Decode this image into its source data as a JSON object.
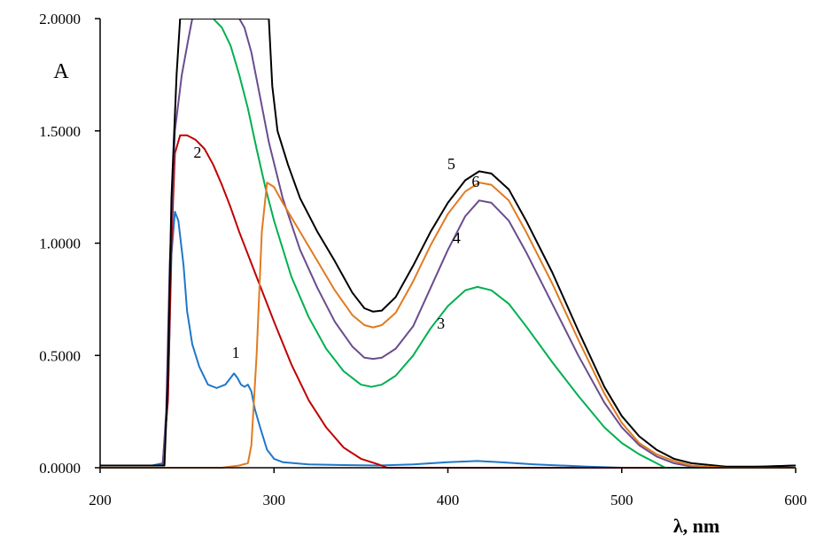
{
  "chart_data": {
    "type": "line",
    "title": "",
    "xlabel": "λ, nm",
    "ylabel": "A",
    "xlim": [
      200,
      600
    ],
    "ylim": [
      0,
      2
    ],
    "x_ticks": [
      "200",
      "300",
      "400",
      "500",
      "600"
    ],
    "y_ticks": [
      "0.0000",
      "0.5000",
      "1.0000",
      "1.5000",
      "2.0000"
    ],
    "series": [
      {
        "name": "1",
        "color": "#1f77c8",
        "label_at": [
          278,
          0.49
        ],
        "points": [
          [
            200,
            0.01
          ],
          [
            230,
            0.01
          ],
          [
            236,
            0.02
          ],
          [
            239,
            0.3
          ],
          [
            241,
            0.95
          ],
          [
            243,
            1.14
          ],
          [
            245,
            1.1
          ],
          [
            248,
            0.9
          ],
          [
            250,
            0.7
          ],
          [
            253,
            0.55
          ],
          [
            257,
            0.45
          ],
          [
            262,
            0.37
          ],
          [
            267,
            0.355
          ],
          [
            272,
            0.37
          ],
          [
            275,
            0.4
          ],
          [
            277,
            0.42
          ],
          [
            279,
            0.4
          ],
          [
            281,
            0.37
          ],
          [
            283,
            0.36
          ],
          [
            285,
            0.37
          ],
          [
            287,
            0.34
          ],
          [
            289,
            0.26
          ],
          [
            292,
            0.18
          ],
          [
            296,
            0.08
          ],
          [
            300,
            0.04
          ],
          [
            305,
            0.025
          ],
          [
            320,
            0.015
          ],
          [
            340,
            0.012
          ],
          [
            360,
            0.01
          ],
          [
            380,
            0.015
          ],
          [
            400,
            0.025
          ],
          [
            417,
            0.03
          ],
          [
            430,
            0.025
          ],
          [
            450,
            0.015
          ],
          [
            480,
            0.005
          ],
          [
            500,
            0.0
          ],
          [
            550,
            0.0
          ],
          [
            600,
            0.0
          ]
        ]
      },
      {
        "name": "2",
        "color": "#c00000",
        "label_at": [
          256,
          1.38
        ],
        "points": [
          [
            200,
            0.01
          ],
          [
            236,
            0.01
          ],
          [
            239,
            0.3
          ],
          [
            241,
            1.0
          ],
          [
            243,
            1.4
          ],
          [
            246,
            1.48
          ],
          [
            250,
            1.48
          ],
          [
            255,
            1.46
          ],
          [
            260,
            1.42
          ],
          [
            265,
            1.35
          ],
          [
            270,
            1.26
          ],
          [
            275,
            1.16
          ],
          [
            280,
            1.05
          ],
          [
            290,
            0.85
          ],
          [
            300,
            0.65
          ],
          [
            310,
            0.46
          ],
          [
            320,
            0.3
          ],
          [
            330,
            0.18
          ],
          [
            340,
            0.09
          ],
          [
            350,
            0.04
          ],
          [
            360,
            0.015
          ],
          [
            365,
            0.0
          ],
          [
            400,
            0.0
          ],
          [
            600,
            0.0
          ]
        ]
      },
      {
        "name": "3",
        "color": "#00b050",
        "label_at": [
          396,
          0.62
        ],
        "points": [
          [
            265,
            2.0
          ],
          [
            270,
            1.96
          ],
          [
            275,
            1.88
          ],
          [
            280,
            1.75
          ],
          [
            285,
            1.6
          ],
          [
            290,
            1.42
          ],
          [
            295,
            1.25
          ],
          [
            300,
            1.1
          ],
          [
            310,
            0.85
          ],
          [
            320,
            0.67
          ],
          [
            330,
            0.53
          ],
          [
            340,
            0.43
          ],
          [
            350,
            0.37
          ],
          [
            356,
            0.36
          ],
          [
            362,
            0.37
          ],
          [
            370,
            0.41
          ],
          [
            380,
            0.5
          ],
          [
            390,
            0.62
          ],
          [
            400,
            0.72
          ],
          [
            410,
            0.79
          ],
          [
            417,
            0.805
          ],
          [
            425,
            0.79
          ],
          [
            435,
            0.73
          ],
          [
            445,
            0.63
          ],
          [
            460,
            0.47
          ],
          [
            475,
            0.32
          ],
          [
            490,
            0.18
          ],
          [
            500,
            0.11
          ],
          [
            510,
            0.06
          ],
          [
            520,
            0.02
          ],
          [
            525,
            0.0
          ],
          [
            540,
            -0.005
          ],
          [
            570,
            -0.01
          ],
          [
            600,
            -0.01
          ]
        ]
      },
      {
        "name": "4",
        "color": "#6a4c8e",
        "label_at": [
          405,
          1.0
        ],
        "points": [
          [
            200,
            0.01
          ],
          [
            236,
            0.01
          ],
          [
            238,
            0.25
          ],
          [
            240,
            0.9
          ],
          [
            243,
            1.5
          ],
          [
            247,
            1.75
          ],
          [
            251,
            1.92
          ],
          [
            253,
            2.0
          ],
          [
            280,
            2.0
          ],
          [
            283,
            1.96
          ],
          [
            287,
            1.85
          ],
          [
            292,
            1.65
          ],
          [
            297,
            1.45
          ],
          [
            305,
            1.2
          ],
          [
            315,
            0.97
          ],
          [
            325,
            0.8
          ],
          [
            335,
            0.65
          ],
          [
            345,
            0.54
          ],
          [
            352,
            0.49
          ],
          [
            357,
            0.485
          ],
          [
            362,
            0.49
          ],
          [
            370,
            0.53
          ],
          [
            380,
            0.63
          ],
          [
            390,
            0.8
          ],
          [
            400,
            0.97
          ],
          [
            410,
            1.12
          ],
          [
            418,
            1.19
          ],
          [
            425,
            1.18
          ],
          [
            435,
            1.1
          ],
          [
            445,
            0.96
          ],
          [
            460,
            0.73
          ],
          [
            475,
            0.5
          ],
          [
            490,
            0.29
          ],
          [
            500,
            0.18
          ],
          [
            510,
            0.1
          ],
          [
            520,
            0.05
          ],
          [
            530,
            0.02
          ],
          [
            540,
            0.005
          ],
          [
            560,
            0.0
          ],
          [
            580,
            0.005
          ],
          [
            600,
            0.01
          ]
        ]
      },
      {
        "name": "5",
        "color": "#000000",
        "label_at": [
          402,
          1.33
        ],
        "points": [
          [
            200,
            0.01
          ],
          [
            237,
            0.01
          ],
          [
            239,
            0.4
          ],
          [
            241,
            1.2
          ],
          [
            244,
            1.75
          ],
          [
            246,
            2.0
          ],
          [
            297,
            2.0
          ],
          [
            299,
            1.7
          ],
          [
            302,
            1.5
          ],
          [
            308,
            1.35
          ],
          [
            315,
            1.2
          ],
          [
            325,
            1.05
          ],
          [
            335,
            0.92
          ],
          [
            345,
            0.78
          ],
          [
            352,
            0.71
          ],
          [
            357,
            0.695
          ],
          [
            362,
            0.7
          ],
          [
            370,
            0.76
          ],
          [
            380,
            0.9
          ],
          [
            390,
            1.05
          ],
          [
            400,
            1.18
          ],
          [
            410,
            1.28
          ],
          [
            418,
            1.32
          ],
          [
            425,
            1.31
          ],
          [
            435,
            1.24
          ],
          [
            445,
            1.1
          ],
          [
            460,
            0.87
          ],
          [
            475,
            0.61
          ],
          [
            490,
            0.36
          ],
          [
            500,
            0.23
          ],
          [
            510,
            0.14
          ],
          [
            520,
            0.08
          ],
          [
            530,
            0.04
          ],
          [
            540,
            0.02
          ],
          [
            560,
            0.005
          ],
          [
            580,
            0.005
          ],
          [
            600,
            0.01
          ]
        ]
      },
      {
        "name": "6",
        "color": "#e07b20",
        "label_at": [
          416,
          1.25
        ],
        "points": [
          [
            200,
            0.0
          ],
          [
            250,
            0.0
          ],
          [
            270,
            0.0
          ],
          [
            280,
            0.01
          ],
          [
            285,
            0.02
          ],
          [
            287,
            0.1
          ],
          [
            290,
            0.5
          ],
          [
            293,
            1.05
          ],
          [
            296,
            1.27
          ],
          [
            300,
            1.25
          ],
          [
            305,
            1.18
          ],
          [
            315,
            1.05
          ],
          [
            325,
            0.92
          ],
          [
            335,
            0.79
          ],
          [
            345,
            0.68
          ],
          [
            352,
            0.635
          ],
          [
            357,
            0.625
          ],
          [
            362,
            0.635
          ],
          [
            370,
            0.69
          ],
          [
            380,
            0.83
          ],
          [
            390,
            0.99
          ],
          [
            400,
            1.13
          ],
          [
            410,
            1.23
          ],
          [
            418,
            1.27
          ],
          [
            425,
            1.26
          ],
          [
            435,
            1.19
          ],
          [
            445,
            1.05
          ],
          [
            460,
            0.82
          ],
          [
            475,
            0.57
          ],
          [
            490,
            0.33
          ],
          [
            500,
            0.2
          ],
          [
            510,
            0.11
          ],
          [
            520,
            0.06
          ],
          [
            530,
            0.03
          ],
          [
            540,
            0.01
          ],
          [
            560,
            0.0
          ],
          [
            600,
            0.0
          ]
        ]
      }
    ]
  }
}
